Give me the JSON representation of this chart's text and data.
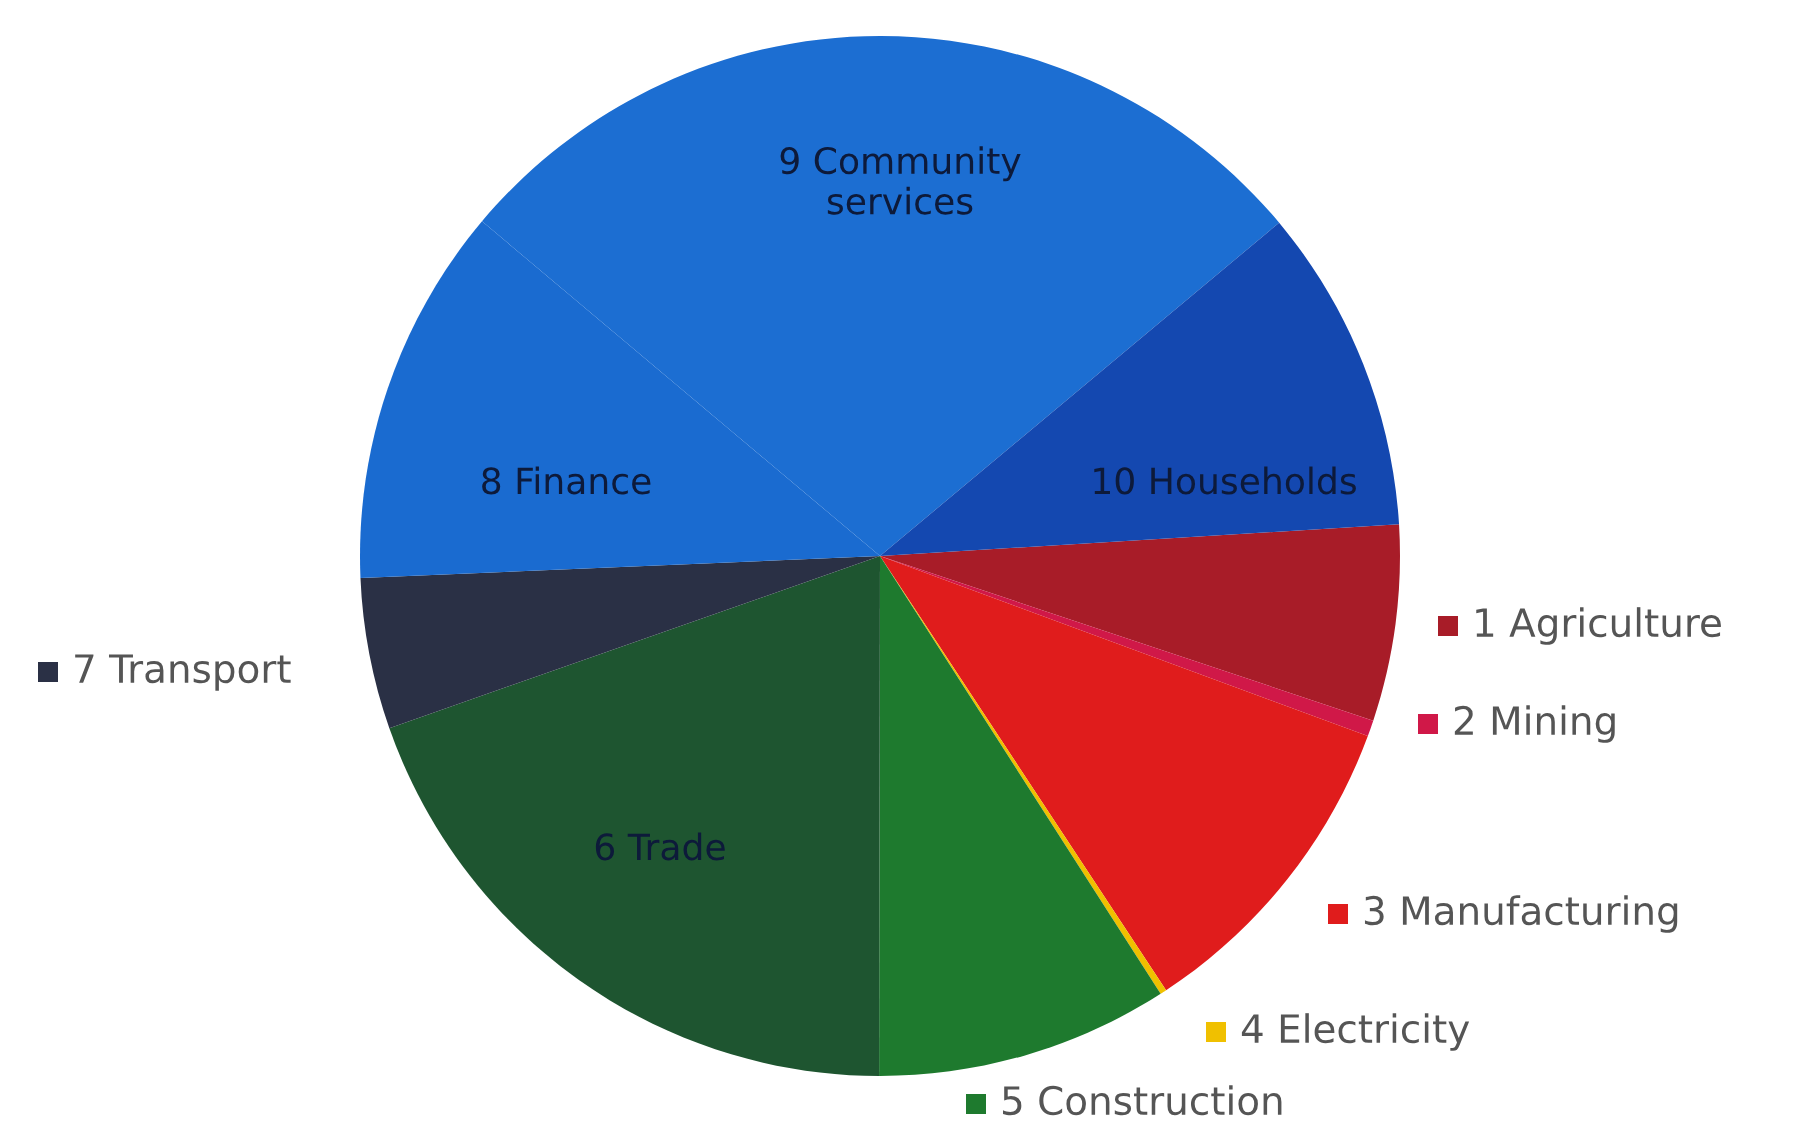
{
  "chart_data": {
    "type": "pie",
    "categories": [
      "1 Agriculture",
      "2 Mining",
      "3 Manufacturing",
      "4 Electricity",
      "5 Construction",
      "6 Trade",
      "7 Transport",
      "8 Finance",
      "9 Community services",
      "10 Households"
    ],
    "legend": "right",
    "values": [
      6.1,
      0.5,
      10.1,
      0.2,
      9.1,
      19.6,
      4.7,
      11.8,
      27.8,
      10.1
    ],
    "colors": [
      "#a81c28",
      "#d01848",
      "#e01c1c",
      "#f0c000",
      "#1e7a2e",
      "#1e5530",
      "#2a3045",
      "#1a6bd0",
      "#1c6ed2",
      "#1448b0"
    ]
  }
}
